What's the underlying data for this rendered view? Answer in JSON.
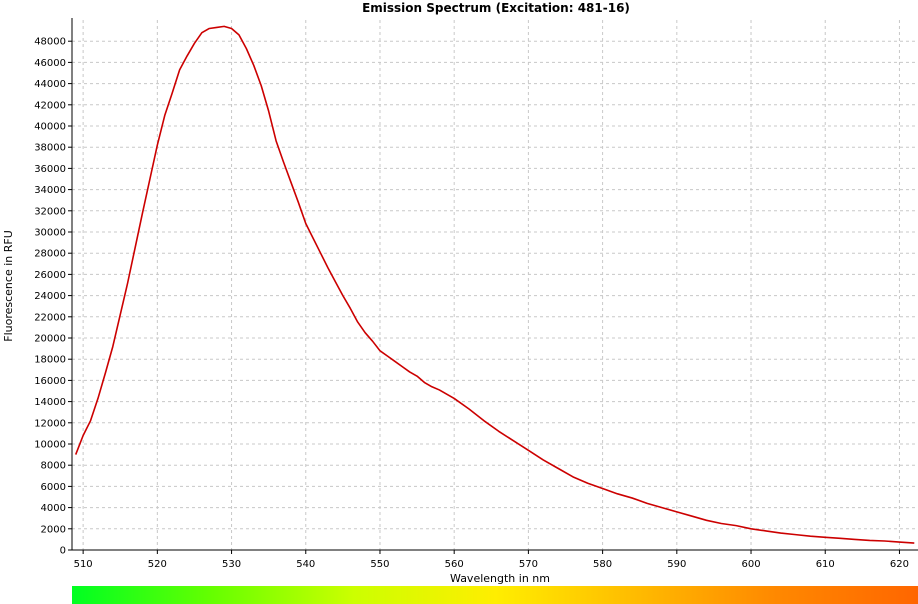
{
  "chart_data": {
    "type": "line",
    "title": "Emission Spectrum (Excitation: 481-16)",
    "xlabel": "Wavelength in nm",
    "ylabel": "Fluorescence in RFU",
    "xlim": [
      508.5,
      622.5
    ],
    "ylim": [
      0,
      50000
    ],
    "xticks": [
      510,
      520,
      530,
      540,
      550,
      560,
      570,
      580,
      590,
      600,
      610,
      620
    ],
    "yticks": [
      0,
      2000,
      4000,
      6000,
      8000,
      10000,
      12000,
      14000,
      16000,
      18000,
      20000,
      22000,
      24000,
      26000,
      28000,
      30000,
      32000,
      34000,
      36000,
      38000,
      40000,
      42000,
      44000,
      46000,
      48000
    ],
    "grid": true,
    "line_color": "#cc0000",
    "spectrum_bar": {
      "colors": [
        "#00ff22",
        "#66ff00",
        "#ccff00",
        "#ffee00",
        "#ffbb00",
        "#ff8800",
        "#ff6600"
      ]
    },
    "series": [
      {
        "x": [
          509,
          510,
          511,
          512,
          513,
          514,
          515,
          516,
          517,
          518,
          519,
          520,
          521,
          522,
          523,
          524,
          525,
          526,
          527,
          528,
          529,
          530,
          531,
          532,
          533,
          534,
          535,
          536,
          537,
          538,
          539,
          540,
          541,
          542,
          543,
          544,
          545,
          546,
          547,
          548,
          549,
          550,
          551,
          552,
          553,
          554,
          555,
          556,
          557,
          558,
          559,
          560,
          562,
          564,
          566,
          568,
          570,
          572,
          574,
          576,
          578,
          580,
          582,
          584,
          586,
          588,
          590,
          592,
          594,
          596,
          598,
          600,
          602,
          604,
          606,
          608,
          610,
          612,
          614,
          616,
          618,
          620,
          622
        ],
        "y": [
          9000,
          10800,
          12200,
          14300,
          16700,
          19200,
          22200,
          25200,
          28500,
          31800,
          35000,
          38200,
          41000,
          43100,
          45300,
          46600,
          47800,
          48800,
          49200,
          49300,
          49400,
          49200,
          48600,
          47300,
          45700,
          43800,
          41400,
          38600,
          36600,
          34700,
          32800,
          30800,
          29400,
          28000,
          26600,
          25300,
          24000,
          22800,
          21500,
          20500,
          19700,
          18800,
          18300,
          17800,
          17300,
          16800,
          16400,
          15800,
          15400,
          15100,
          14700,
          14300,
          13300,
          12200,
          11200,
          10300,
          9400,
          8500,
          7700,
          6900,
          6300,
          5800,
          5300,
          4900,
          4400,
          4000,
          3600,
          3200,
          2800,
          2500,
          2300,
          2000,
          1800,
          1600,
          1450,
          1300,
          1200,
          1100,
          1000,
          900,
          850,
          750,
          650
        ]
      }
    ]
  }
}
